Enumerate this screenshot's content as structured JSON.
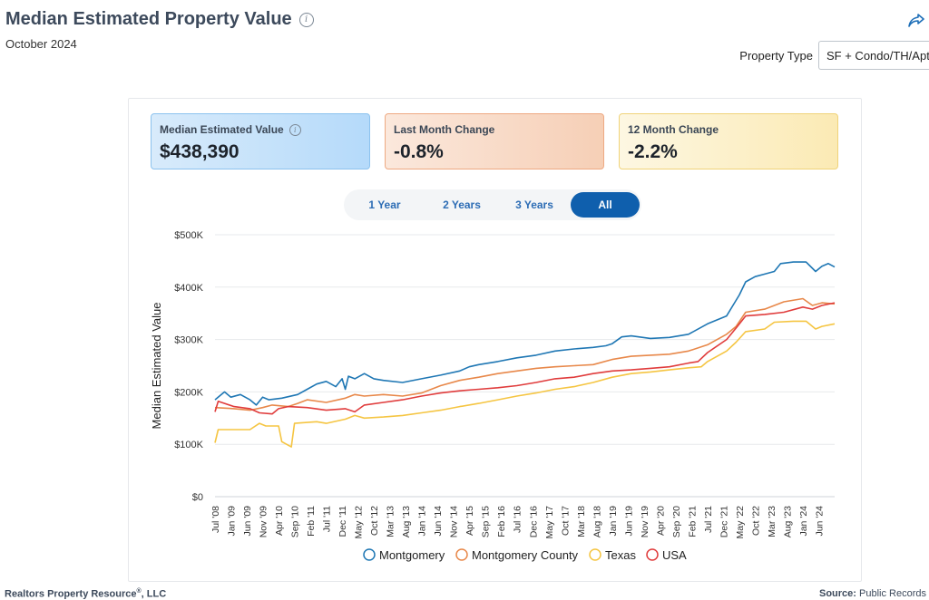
{
  "header": {
    "title": "Median Estimated Property Value",
    "date": "October 2024"
  },
  "property_type": {
    "label": "Property Type",
    "value": "SF + Condo/TH/Apt"
  },
  "cards": [
    {
      "label": "Median Estimated Value",
      "value": "$438,390",
      "color": "#b5dafa"
    },
    {
      "label": "Last Month Change",
      "value": "-0.8%",
      "color": "#f6cfb6"
    },
    {
      "label": "12 Month Change",
      "value": "-2.2%",
      "color": "#fbeab4"
    }
  ],
  "range_buttons": [
    "1 Year",
    "2 Years",
    "3 Years",
    "All"
  ],
  "range_selected": "All",
  "footer": {
    "company": "Realtors Property Resource",
    "reg": "®",
    "company_suffix": ", LLC",
    "source_label": "Source:",
    "source_value": "Public Records"
  },
  "chart_data": {
    "type": "line",
    "title": "",
    "xlabel": "",
    "ylabel": "Median Estimated Value",
    "ylim": [
      0,
      500000
    ],
    "yticks": [
      0,
      100000,
      200000,
      300000,
      400000,
      500000
    ],
    "ytick_labels": [
      "$0",
      "$100K",
      "$200K",
      "$300K",
      "$400K",
      "$500K"
    ],
    "x_start": "2008-07",
    "x_end": "2024-10",
    "xtick_labels": [
      "Jul '08",
      "Jan '09",
      "Jun '09",
      "Nov '09",
      "Apr '10",
      "Sep '10",
      "Feb '11",
      "Jul '11",
      "Dec '11",
      "May '12",
      "Oct '12",
      "Mar '13",
      "Aug '13",
      "Jan '14",
      "Jun '14",
      "Nov '14",
      "Apr '15",
      "Sep '15",
      "Feb '16",
      "Jul '16",
      "Dec '16",
      "May '17",
      "Oct '17",
      "Mar '18",
      "Aug '18",
      "Jan '19",
      "Jun '19",
      "Nov '19",
      "Apr '20",
      "Sep '20",
      "Feb '21",
      "Jul '21",
      "Dec '21",
      "May '22",
      "Oct '22",
      "Mar '23",
      "Aug '23",
      "Jan '24",
      "Jun '24"
    ],
    "grid": true,
    "legend": "bottom",
    "series": [
      {
        "name": "Montgomery",
        "color": "#1f77b4",
        "points": [
          [
            "2008-07",
            185000
          ],
          [
            "2008-09",
            195000
          ],
          [
            "2008-10",
            200000
          ],
          [
            "2008-12",
            190000
          ],
          [
            "2009-03",
            195000
          ],
          [
            "2009-06",
            185000
          ],
          [
            "2009-08",
            175000
          ],
          [
            "2009-10",
            190000
          ],
          [
            "2009-12",
            185000
          ],
          [
            "2010-04",
            188000
          ],
          [
            "2010-09",
            195000
          ],
          [
            "2010-12",
            205000
          ],
          [
            "2011-03",
            215000
          ],
          [
            "2011-06",
            220000
          ],
          [
            "2011-09",
            210000
          ],
          [
            "2011-11",
            225000
          ],
          [
            "2011-12",
            205000
          ],
          [
            "2012-01",
            230000
          ],
          [
            "2012-03",
            225000
          ],
          [
            "2012-06",
            235000
          ],
          [
            "2012-09",
            225000
          ],
          [
            "2012-12",
            222000
          ],
          [
            "2013-06",
            218000
          ],
          [
            "2013-12",
            225000
          ],
          [
            "2014-06",
            232000
          ],
          [
            "2014-12",
            240000
          ],
          [
            "2015-03",
            248000
          ],
          [
            "2015-06",
            252000
          ],
          [
            "2015-12",
            258000
          ],
          [
            "2016-06",
            265000
          ],
          [
            "2016-12",
            270000
          ],
          [
            "2017-06",
            278000
          ],
          [
            "2017-12",
            282000
          ],
          [
            "2018-06",
            285000
          ],
          [
            "2018-10",
            288000
          ],
          [
            "2018-12",
            292000
          ],
          [
            "2019-03",
            305000
          ],
          [
            "2019-06",
            307000
          ],
          [
            "2019-12",
            302000
          ],
          [
            "2020-06",
            304000
          ],
          [
            "2020-12",
            310000
          ],
          [
            "2021-06",
            330000
          ],
          [
            "2021-12",
            345000
          ],
          [
            "2022-02",
            365000
          ],
          [
            "2022-04",
            385000
          ],
          [
            "2022-06",
            410000
          ],
          [
            "2022-09",
            420000
          ],
          [
            "2022-12",
            425000
          ],
          [
            "2023-03",
            430000
          ],
          [
            "2023-05",
            445000
          ],
          [
            "2023-09",
            448000
          ],
          [
            "2024-01",
            448000
          ],
          [
            "2024-04",
            430000
          ],
          [
            "2024-06",
            440000
          ],
          [
            "2024-08",
            445000
          ],
          [
            "2024-10",
            438390
          ]
        ]
      },
      {
        "name": "Montgomery County",
        "color": "#e8884a",
        "points": [
          [
            "2008-07",
            170000
          ],
          [
            "2009-01",
            168000
          ],
          [
            "2009-06",
            165000
          ],
          [
            "2009-10",
            170000
          ],
          [
            "2010-01",
            175000
          ],
          [
            "2010-06",
            172000
          ],
          [
            "2010-09",
            178000
          ],
          [
            "2010-12",
            185000
          ],
          [
            "2011-06",
            180000
          ],
          [
            "2011-12",
            188000
          ],
          [
            "2012-03",
            195000
          ],
          [
            "2012-06",
            192000
          ],
          [
            "2012-12",
            195000
          ],
          [
            "2013-06",
            192000
          ],
          [
            "2013-12",
            198000
          ],
          [
            "2014-06",
            212000
          ],
          [
            "2014-12",
            222000
          ],
          [
            "2015-06",
            228000
          ],
          [
            "2015-12",
            235000
          ],
          [
            "2016-06",
            240000
          ],
          [
            "2016-12",
            245000
          ],
          [
            "2017-06",
            248000
          ],
          [
            "2017-12",
            250000
          ],
          [
            "2018-06",
            252000
          ],
          [
            "2018-12",
            262000
          ],
          [
            "2019-06",
            268000
          ],
          [
            "2019-12",
            270000
          ],
          [
            "2020-06",
            272000
          ],
          [
            "2020-12",
            278000
          ],
          [
            "2021-06",
            290000
          ],
          [
            "2021-12",
            310000
          ],
          [
            "2022-03",
            325000
          ],
          [
            "2022-06",
            352000
          ],
          [
            "2022-12",
            358000
          ],
          [
            "2023-06",
            372000
          ],
          [
            "2023-12",
            378000
          ],
          [
            "2024-03",
            365000
          ],
          [
            "2024-06",
            370000
          ],
          [
            "2024-10",
            368000
          ]
        ]
      },
      {
        "name": "Texas",
        "color": "#f5c542",
        "points": [
          [
            "2008-07",
            103000
          ],
          [
            "2008-08",
            128000
          ],
          [
            "2009-06",
            128000
          ],
          [
            "2009-09",
            140000
          ],
          [
            "2009-11",
            135000
          ],
          [
            "2010-03",
            135000
          ],
          [
            "2010-04",
            105000
          ],
          [
            "2010-07",
            95000
          ],
          [
            "2010-08",
            140000
          ],
          [
            "2011-03",
            143000
          ],
          [
            "2011-06",
            140000
          ],
          [
            "2011-12",
            148000
          ],
          [
            "2012-03",
            155000
          ],
          [
            "2012-06",
            150000
          ],
          [
            "2012-12",
            152000
          ],
          [
            "2013-06",
            155000
          ],
          [
            "2013-12",
            160000
          ],
          [
            "2014-06",
            165000
          ],
          [
            "2014-12",
            172000
          ],
          [
            "2015-06",
            178000
          ],
          [
            "2015-12",
            185000
          ],
          [
            "2016-06",
            192000
          ],
          [
            "2016-12",
            198000
          ],
          [
            "2017-06",
            205000
          ],
          [
            "2017-12",
            210000
          ],
          [
            "2018-06",
            218000
          ],
          [
            "2018-12",
            228000
          ],
          [
            "2019-06",
            235000
          ],
          [
            "2019-12",
            238000
          ],
          [
            "2020-06",
            242000
          ],
          [
            "2020-12",
            246000
          ],
          [
            "2021-04",
            248000
          ],
          [
            "2021-06",
            258000
          ],
          [
            "2021-12",
            278000
          ],
          [
            "2022-03",
            295000
          ],
          [
            "2022-06",
            315000
          ],
          [
            "2022-12",
            320000
          ],
          [
            "2023-03",
            333000
          ],
          [
            "2023-09",
            335000
          ],
          [
            "2024-01",
            335000
          ],
          [
            "2024-04",
            320000
          ],
          [
            "2024-06",
            325000
          ],
          [
            "2024-10",
            330000
          ]
        ]
      },
      {
        "name": "USA",
        "color": "#e03c3c",
        "points": [
          [
            "2008-07",
            162000
          ],
          [
            "2008-08",
            182000
          ],
          [
            "2009-01",
            172000
          ],
          [
            "2009-06",
            168000
          ],
          [
            "2009-09",
            160000
          ],
          [
            "2010-01",
            158000
          ],
          [
            "2010-03",
            168000
          ],
          [
            "2010-06",
            172000
          ],
          [
            "2010-12",
            170000
          ],
          [
            "2011-06",
            165000
          ],
          [
            "2011-12",
            168000
          ],
          [
            "2012-03",
            162000
          ],
          [
            "2012-06",
            175000
          ],
          [
            "2012-12",
            180000
          ],
          [
            "2013-06",
            185000
          ],
          [
            "2013-12",
            192000
          ],
          [
            "2014-06",
            198000
          ],
          [
            "2014-12",
            202000
          ],
          [
            "2015-06",
            205000
          ],
          [
            "2015-12",
            208000
          ],
          [
            "2016-06",
            212000
          ],
          [
            "2016-12",
            218000
          ],
          [
            "2017-06",
            225000
          ],
          [
            "2017-12",
            228000
          ],
          [
            "2018-06",
            235000
          ],
          [
            "2018-12",
            240000
          ],
          [
            "2019-06",
            242000
          ],
          [
            "2019-12",
            245000
          ],
          [
            "2020-06",
            248000
          ],
          [
            "2020-12",
            255000
          ],
          [
            "2021-03",
            258000
          ],
          [
            "2021-06",
            275000
          ],
          [
            "2021-12",
            300000
          ],
          [
            "2022-03",
            322000
          ],
          [
            "2022-06",
            345000
          ],
          [
            "2022-12",
            348000
          ],
          [
            "2023-06",
            352000
          ],
          [
            "2023-12",
            362000
          ],
          [
            "2024-03",
            358000
          ],
          [
            "2024-06",
            365000
          ],
          [
            "2024-10",
            370000
          ]
        ]
      }
    ]
  }
}
